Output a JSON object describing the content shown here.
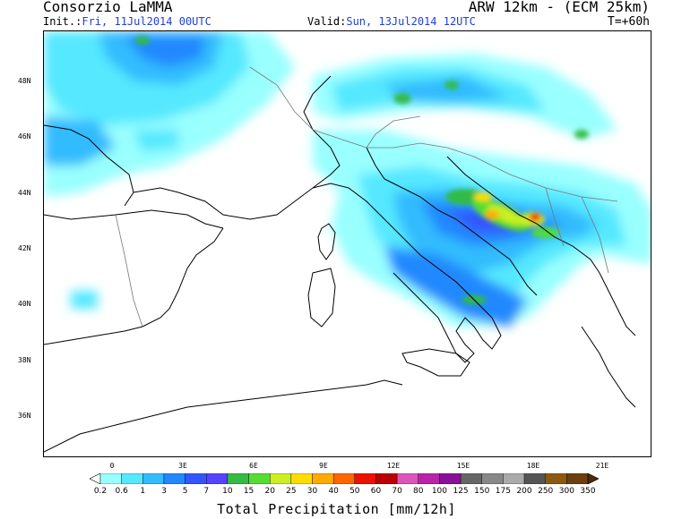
{
  "header": {
    "org": "Consorzio LaMMA",
    "model": "ARW 12km - (ECM 25km)",
    "init_label": "Init.:",
    "init_value": "Fri, 11Jul2014 00UTC",
    "valid_label": "Valid:",
    "valid_value": "Sun, 13Jul2014 12UTC",
    "lead_time": "T=+60h"
  },
  "map": {
    "lat_labels": [
      {
        "text": "48N",
        "value": 48
      },
      {
        "text": "46N",
        "value": 46
      },
      {
        "text": "44N",
        "value": 44
      },
      {
        "text": "42N",
        "value": 42
      },
      {
        "text": "40N",
        "value": 40
      },
      {
        "text": "38N",
        "value": 38
      },
      {
        "text": "36N",
        "value": 36
      }
    ],
    "lon_labels": [
      {
        "text": "0",
        "value": 0
      },
      {
        "text": "3E",
        "value": 3
      },
      {
        "text": "6E",
        "value": 6
      },
      {
        "text": "9E",
        "value": 9
      },
      {
        "text": "12E",
        "value": 12
      },
      {
        "text": "15E",
        "value": 15
      },
      {
        "text": "18E",
        "value": 18
      },
      {
        "text": "21E",
        "value": 21
      }
    ],
    "lat_range": [
      34.7,
      50
    ],
    "lon_range": [
      -2.8,
      22.6
    ]
  },
  "colorbar": {
    "title": "Total Precipitation [mm/12h]",
    "labels": [
      "0.2",
      "0.6",
      "1",
      "3",
      "5",
      "7",
      "10",
      "15",
      "20",
      "25",
      "30",
      "40",
      "50",
      "60",
      "70",
      "80",
      "100",
      "125",
      "150",
      "175",
      "200",
      "250",
      "300",
      "350"
    ],
    "colors": [
      "#99ffff",
      "#55e8ff",
      "#33bbff",
      "#2288ff",
      "#3355ff",
      "#5544ff",
      "#33bb44",
      "#55dd33",
      "#ccee22",
      "#ffdd00",
      "#ffaa00",
      "#ff6600",
      "#ee1100",
      "#bb0000",
      "#dd55bb",
      "#bb22aa",
      "#881199",
      "#666666",
      "#888888",
      "#aaaaaa",
      "#555555",
      "#8b5a10",
      "#6b3f10",
      "#4b2a08"
    ]
  }
}
